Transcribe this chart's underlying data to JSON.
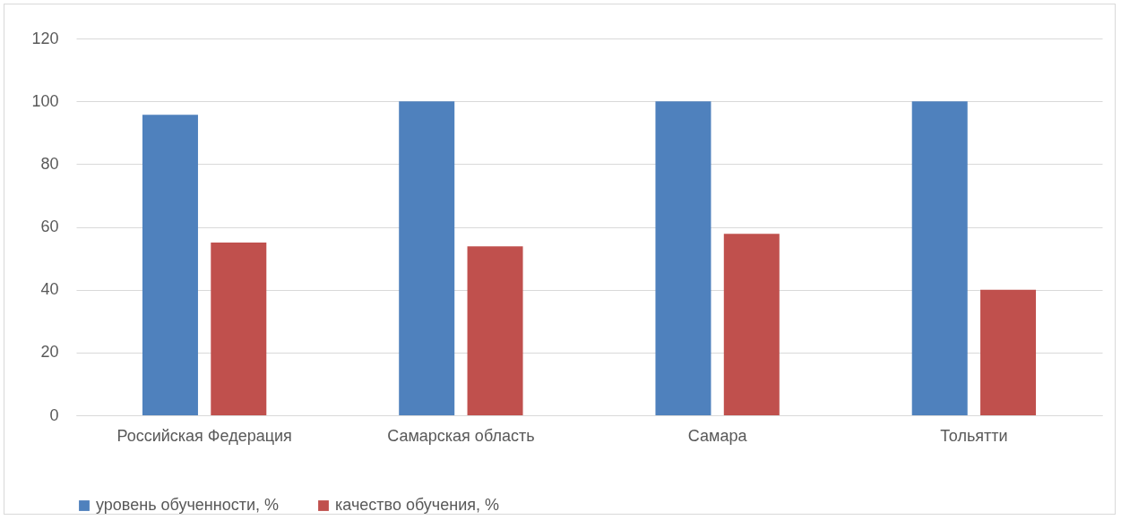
{
  "chart_data": {
    "type": "bar",
    "categories": [
      "Российская Федерация",
      "Самарская область",
      "Самара",
      "Тольятти"
    ],
    "series": [
      {
        "name": "уровень обученности, %",
        "color": "#4f81bd",
        "values": [
          95.7,
          100,
          100,
          100
        ]
      },
      {
        "name": "качество обучения, %",
        "color": "#c0504d",
        "values": [
          55,
          53.8,
          57.8,
          40
        ]
      }
    ],
    "ylim": [
      0,
      120
    ],
    "yticks": [
      0,
      20,
      40,
      60,
      80,
      100,
      120
    ],
    "grid": "y",
    "legend": "bottom"
  }
}
